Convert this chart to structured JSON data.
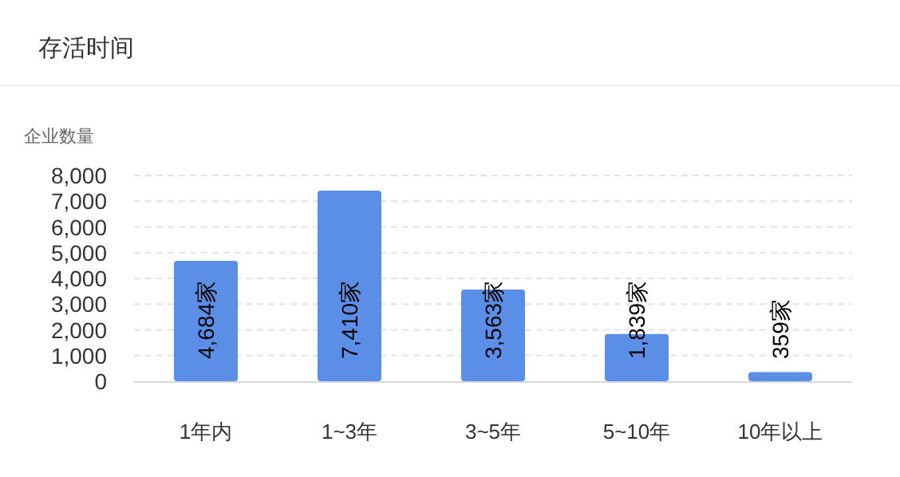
{
  "chart_data": {
    "type": "bar",
    "title": "存活时间",
    "ylabel": "企业数量",
    "categories": [
      "1年内",
      "1~3年",
      "3~5年",
      "5~10年",
      "10年以上"
    ],
    "values": [
      4684,
      7410,
      3563,
      1839,
      359
    ],
    "value_labels": [
      "4,684家",
      "7,410家",
      "3,563家",
      "1,839家",
      "359家"
    ],
    "color": "#5b8ee6",
    "ylim": [
      0,
      8000
    ],
    "yticks": [
      {
        "value": 0,
        "label": "0"
      },
      {
        "value": 1000,
        "label": "1,000"
      },
      {
        "value": 2000,
        "label": "2,000"
      },
      {
        "value": 3000,
        "label": "3,000"
      },
      {
        "value": 4000,
        "label": "4,000"
      },
      {
        "value": 5000,
        "label": "5,000"
      },
      {
        "value": 6000,
        "label": "6,000"
      },
      {
        "value": 7000,
        "label": "7,000"
      },
      {
        "value": 8000,
        "label": "8,000"
      }
    ],
    "grid": "y"
  }
}
